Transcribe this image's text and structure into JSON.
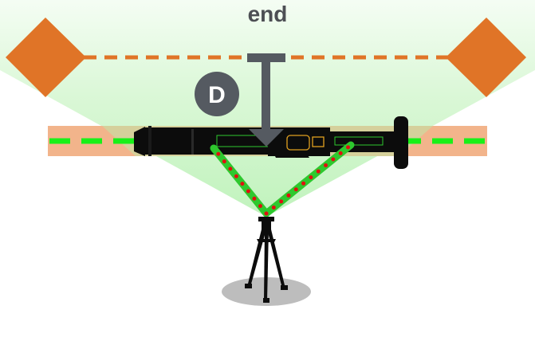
{
  "diagram": {
    "end_label": "end",
    "distance_marker_label": "D"
  },
  "colors": {
    "target_diamond": "#e07427",
    "end_line": "#e07427",
    "measurement_arrow": "#555a61",
    "marker_circle": "#555a61",
    "view_cone": "#bdf2b9",
    "rail_band": "#f2b48b",
    "rail_centerline": "#18f018",
    "beam_line": "#2ec82e",
    "beam_dots": "#e01010",
    "instrument": "#0c0c0c",
    "tripod_shadow": "#bdbdbd"
  },
  "icons": {
    "left_target": "orange-diamond",
    "right_target": "orange-diamond",
    "instrument": "telescopic-scanner",
    "station": "tripod"
  }
}
